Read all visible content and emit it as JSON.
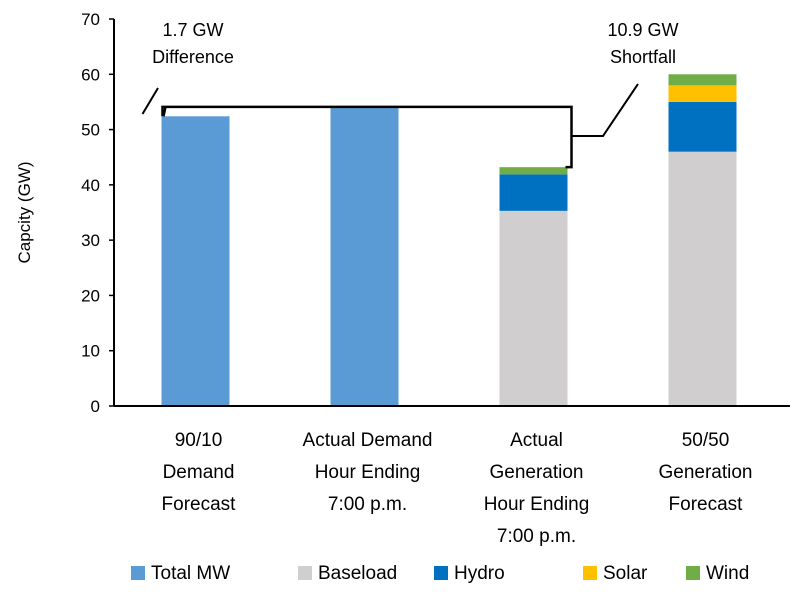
{
  "chart_data": {
    "type": "bar",
    "stacked": true,
    "ylabel": "Capcity (GW)",
    "ylim": [
      0,
      70
    ],
    "yticks": [
      "0",
      "10",
      "20",
      "30",
      "40",
      "50",
      "60",
      "70"
    ],
    "grid": false,
    "legend_position": "bottom",
    "categories": [
      [
        "90/10",
        "Demand",
        "Forecast"
      ],
      [
        "Actual Demand",
        "Hour Ending",
        "7:00 p.m."
      ],
      [
        "Actual",
        "Generation",
        "Hour Ending",
        "7:00 p.m."
      ],
      [
        "50/50",
        "Generation",
        "Forecast"
      ]
    ],
    "series": [
      {
        "name": "Total MW",
        "color": "#5b9bd5",
        "values": [
          52.4,
          54.1,
          0,
          0
        ]
      },
      {
        "name": "Baseload",
        "color": "#d0cece",
        "values": [
          0,
          0,
          35.3,
          46.0
        ]
      },
      {
        "name": "Hydro",
        "color": "#0070c0",
        "values": [
          0,
          0,
          6.6,
          9.0
        ]
      },
      {
        "name": "Solar",
        "color": "#ffc000",
        "values": [
          0,
          0,
          0,
          3.0
        ]
      },
      {
        "name": "Wind",
        "color": "#70ad47",
        "values": [
          0,
          0,
          1.3,
          2.0
        ]
      }
    ],
    "annotations": [
      {
        "lines": [
          "1.7 GW",
          "Difference"
        ]
      },
      {
        "lines": [
          "10.9 GW",
          "Shortfall"
        ]
      }
    ]
  }
}
